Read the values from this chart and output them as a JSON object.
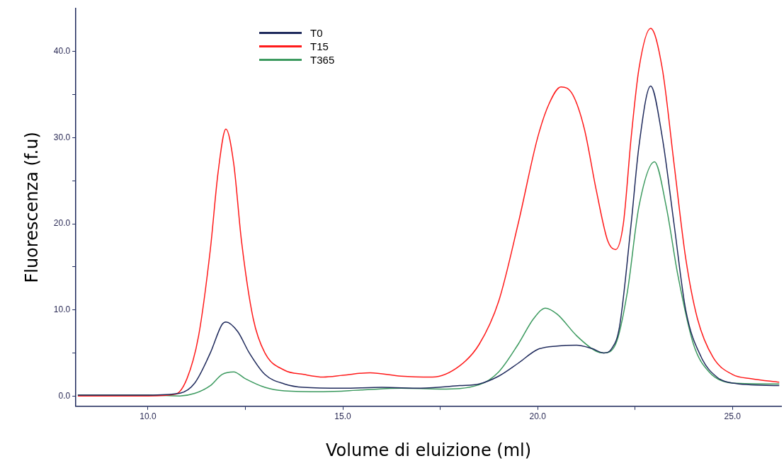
{
  "chart_data": {
    "type": "line",
    "xlabel": "Volume di eluizione (ml)",
    "ylabel": "Fluorescenza (f.u)",
    "xlim": [
      8.15,
      26.25
    ],
    "ylim": [
      -1.2,
      45
    ],
    "xticks": [
      {
        "value": 10,
        "label": "10.0"
      },
      {
        "value": 12.5,
        "label": null
      },
      {
        "value": 15,
        "label": "15.0"
      },
      {
        "value": 17.5,
        "label": null
      },
      {
        "value": 20,
        "label": "20.0"
      },
      {
        "value": 22.5,
        "label": null
      },
      {
        "value": 25,
        "label": "25.0"
      }
    ],
    "yticks": [
      {
        "value": 0,
        "label": "0.0"
      },
      {
        "value": 5,
        "label": null
      },
      {
        "value": 10,
        "label": "10.0"
      },
      {
        "value": 15,
        "label": null
      },
      {
        "value": 20,
        "label": "20.0"
      },
      {
        "value": 25,
        "label": null
      },
      {
        "value": 30,
        "label": "30.0"
      },
      {
        "value": 35,
        "label": null
      },
      {
        "value": 40,
        "label": "40.0"
      }
    ],
    "grid": false,
    "legend": "top left",
    "marker": "none",
    "line_style": "solid",
    "series": [
      {
        "name": "T0",
        "color": "#1f2a5c",
        "x": [
          8.2,
          9,
          10,
          10.8,
          11.2,
          11.6,
          11.9,
          12.0,
          12.3,
          12.6,
          13,
          13.5,
          14,
          15,
          16,
          17,
          18,
          18.5,
          19,
          19.5,
          20,
          20.5,
          21,
          21.4,
          21.7,
          21.9,
          22.1,
          22.4,
          22.6,
          22.9,
          23.2,
          23.5,
          23.8,
          24.2,
          24.6,
          25,
          26.2
        ],
        "values": [
          0.1,
          0.1,
          0.1,
          0.3,
          1.5,
          5,
          8.3,
          8.6,
          7.5,
          5,
          2.5,
          1.4,
          1.0,
          0.9,
          1.0,
          0.9,
          1.2,
          1.4,
          2.3,
          3.8,
          5.4,
          5.8,
          5.9,
          5.5,
          5,
          5.5,
          8,
          20,
          29,
          36,
          30,
          20,
          10,
          4.5,
          2.2,
          1.5,
          1.2
        ]
      },
      {
        "name": "T15",
        "color": "#ff1a1a",
        "x": [
          8.2,
          9,
          10,
          10.7,
          11.0,
          11.3,
          11.6,
          11.8,
          12.0,
          12.2,
          12.4,
          12.7,
          13.0,
          13.5,
          14,
          14.5,
          15,
          15.7,
          16.5,
          17.3,
          18,
          18.5,
          19,
          19.5,
          20,
          20.3,
          20.6,
          20.9,
          21.2,
          21.5,
          21.8,
          22.0,
          22.2,
          22.4,
          22.6,
          22.9,
          23.2,
          23.5,
          23.8,
          24.1,
          24.5,
          25,
          25.5,
          26.2
        ],
        "values": [
          0,
          0,
          0,
          0.2,
          2,
          7,
          17,
          26,
          31,
          27,
          18,
          9,
          5,
          3,
          2.5,
          2.2,
          2.4,
          2.7,
          2.3,
          2.2,
          3.5,
          6,
          11,
          20,
          30,
          34,
          35.9,
          35,
          31,
          24,
          18,
          17,
          20,
          30,
          38,
          42.7,
          38,
          27,
          16,
          9,
          4.5,
          2.5,
          2,
          1.6
        ]
      },
      {
        "name": "T365",
        "color": "#3c9a5f",
        "x": [
          8.2,
          10,
          10.8,
          11.2,
          11.6,
          11.9,
          12.2,
          12.5,
          13,
          13.5,
          14.5,
          15.5,
          16.5,
          17.5,
          18.5,
          19,
          19.5,
          19.9,
          20.2,
          20.5,
          21,
          21.5,
          21.7,
          22,
          22.3,
          22.6,
          23.0,
          23.3,
          23.6,
          24,
          24.4,
          25,
          26.2
        ],
        "values": [
          0.1,
          0.1,
          0.0,
          0.3,
          1.2,
          2.5,
          2.8,
          2.0,
          1.0,
          0.6,
          0.5,
          0.7,
          0.9,
          0.8,
          1.3,
          2.8,
          6,
          9,
          10.2,
          9.5,
          7,
          5.2,
          5,
          6,
          12,
          22,
          27.2,
          22,
          14,
          6,
          2.8,
          1.5,
          1.4
        ]
      }
    ]
  }
}
